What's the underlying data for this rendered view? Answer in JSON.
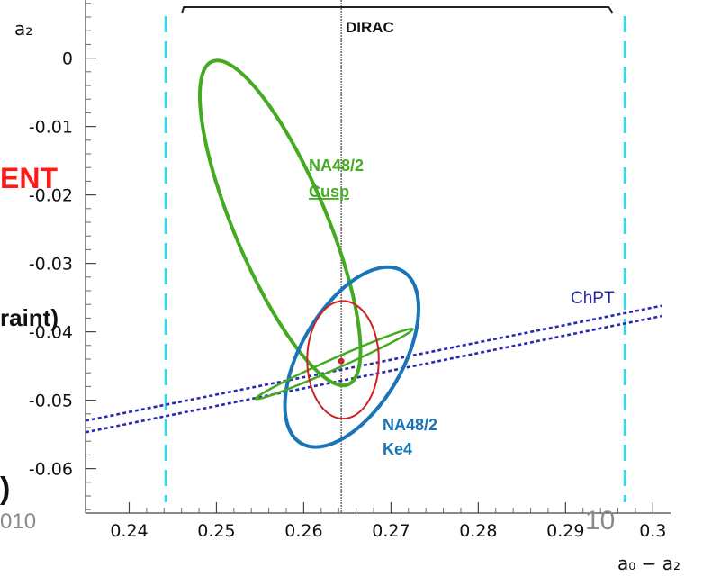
{
  "chart_data": {
    "type": "scatter",
    "xlabel": "a₀ − a₂",
    "ylabel": "a₂",
    "xlim": [
      0.235,
      0.301
    ],
    "ylim": [
      -0.0665,
      0.0085
    ],
    "x_ticks": [
      0.24,
      0.25,
      0.26,
      0.27,
      0.28,
      0.29,
      0.3
    ],
    "x_tick_labels": [
      "0.24",
      "0.25",
      "0.26",
      "0.27",
      "0.28",
      "0.29",
      "0.3"
    ],
    "y_ticks": [
      0,
      -0.01,
      -0.02,
      -0.03,
      -0.04,
      -0.05,
      -0.06
    ],
    "y_tick_labels": [
      "0",
      "-0.01",
      "-0.02",
      "-0.03",
      "-0.04",
      "-0.05",
      "-0.06"
    ],
    "grid": false,
    "annotations": {
      "dirac": "DIRAC",
      "cusp_line1": "NA48/2",
      "cusp_line2": "Cusp",
      "ke4_line1": "NA48/2",
      "ke4_line2": "Ke4",
      "chpt": "ChPT"
    },
    "colors": {
      "cusp": "#44aa22",
      "ke4": "#1a74b8",
      "chpt": "#2a2ab0",
      "dirac_bounds": "#3ad7e8",
      "red": "#cc2222"
    },
    "dirac_bounds_x": [
      0.2442,
      0.2968
    ],
    "dirac_center_x": 0.2643,
    "ellipses": [
      {
        "name": "NA48/2 Cusp",
        "cx": 0.2573,
        "cy": -0.0241,
        "ax_from": [
          0.2495,
          -0.0005
        ],
        "ax_to": [
          0.2651,
          -0.0477
        ],
        "semi_minor": 0.0053,
        "color_key": "cusp",
        "stroke_width": 4
      },
      {
        "name": "NA48/2 Ke4",
        "cx": 0.2655,
        "cy": -0.0437,
        "ax_from": [
          0.2597,
          -0.0563
        ],
        "ax_to": [
          0.2713,
          -0.0311
        ],
        "semi_minor": 0.0058,
        "color_key": "ke4",
        "stroke_width": 4
      },
      {
        "name": "Ke4 + Cusp",
        "cx": 0.2635,
        "cy": -0.0447,
        "ax_from": [
          0.2545,
          -0.0498
        ],
        "ax_to": [
          0.2725,
          -0.0396
        ],
        "semi_minor": 0.0006,
        "color_key": "cusp",
        "stroke_width": 2.5
      },
      {
        "name": "red contour",
        "cx": 0.2645,
        "cy": -0.0441,
        "ax_from": [
          0.2645,
          -0.0527
        ],
        "ax_to": [
          0.2645,
          -0.0355
        ],
        "semi_minor": 0.0041,
        "color_key": "red",
        "stroke_width": 2
      }
    ],
    "central_point": {
      "x": 0.2643,
      "y": -0.0443
    },
    "chpt_bands": [
      {
        "x": [
          0.235,
          0.301
        ],
        "y": [
          -0.053,
          -0.0362
        ]
      },
      {
        "x": [
          0.235,
          0.301
        ],
        "y": [
          -0.0547,
          -0.0377
        ]
      }
    ]
  },
  "overlays": {
    "left_red": "ENT",
    "left_black": "raint)",
    "left_paren": ")",
    "footer_left": "010",
    "footer_page": "10"
  }
}
